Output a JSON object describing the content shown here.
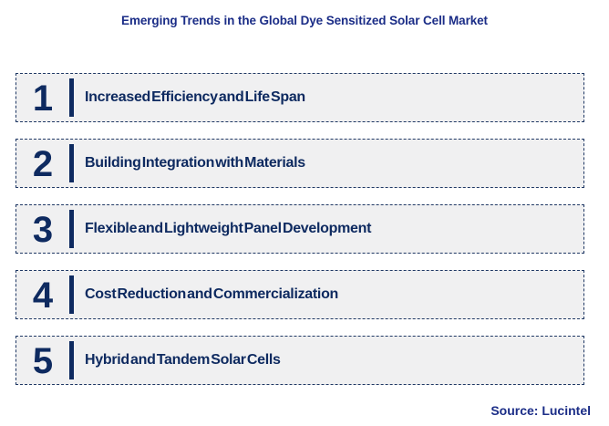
{
  "title": "Emerging Trends in the Global Dye Sensitized Solar Cell Market",
  "trends": [
    {
      "number": "1",
      "label": "Increased Efficiency and Life Span"
    },
    {
      "number": "2",
      "label": "Building Integration with Materials"
    },
    {
      "number": "3",
      "label": "Flexible and Lightweight Panel Development"
    },
    {
      "number": "4",
      "label": "Cost Reduction and Commercialization"
    },
    {
      "number": "5",
      "label": "Hybrid and Tandem Solar Cells"
    }
  ],
  "source": "Source: Lucintel",
  "colors": {
    "title_text": "#1b2d87",
    "trend_text": "#0e2a60",
    "box_background": "#f0f0f1",
    "box_border": "#1f3864",
    "page_background": "#ffffff"
  }
}
